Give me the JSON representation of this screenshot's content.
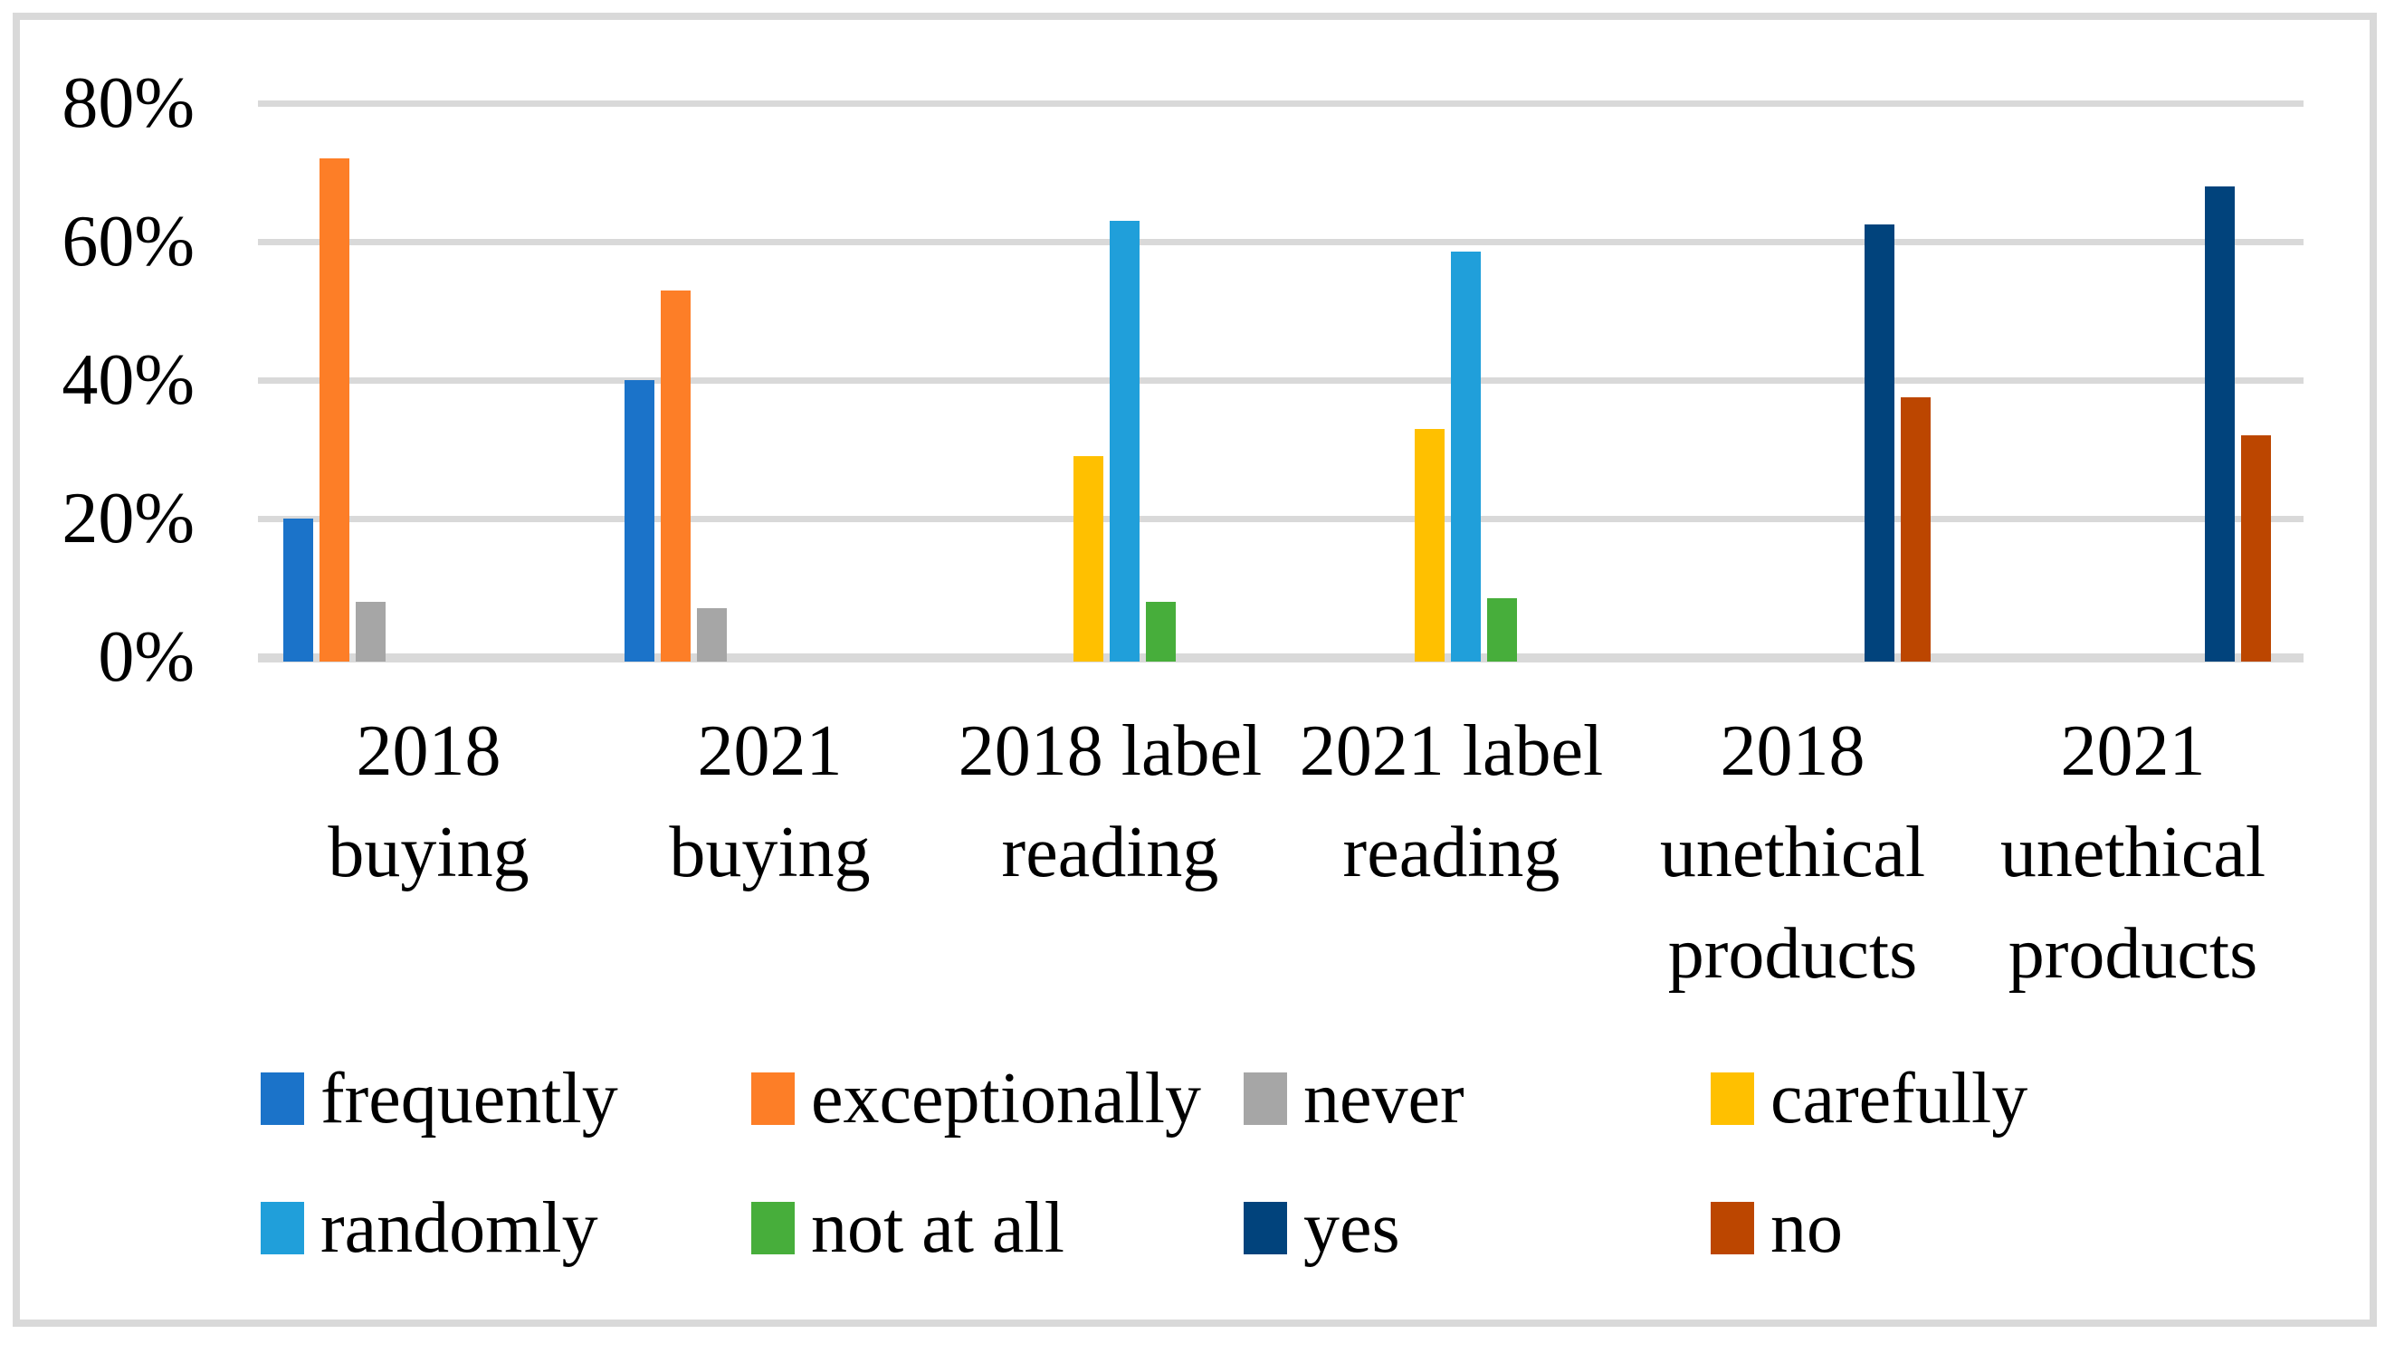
{
  "figure": {
    "background": "#FFFFFF",
    "border_color": "#D9D9D9"
  },
  "chart_data": {
    "type": "bar",
    "title": "",
    "xlabel": "",
    "ylabel": "",
    "ylim": [
      0,
      80
    ],
    "yticks": [
      "80%",
      "60%",
      "40%",
      "20%",
      "0%"
    ],
    "ytick_values": [
      80,
      60,
      40,
      20,
      0
    ],
    "grid": true,
    "gridline_color": "#D9D9D9",
    "axis_line_color": "#D9D9D9",
    "legend_position": "bottom",
    "categories": [
      {
        "label": "2018 buying",
        "lines": [
          "2018",
          "buying"
        ]
      },
      {
        "label": "2021 buying",
        "lines": [
          "2021",
          "buying"
        ]
      },
      {
        "label": "2018 label reading",
        "lines": [
          "2018 label",
          "reading"
        ]
      },
      {
        "label": "2021 label reading",
        "lines": [
          "2021 label",
          "reading"
        ]
      },
      {
        "label": "2018 unethical products",
        "lines": [
          "2018",
          "unethical",
          "products"
        ]
      },
      {
        "label": "2021 unethical products",
        "lines": [
          "2021",
          "unethical",
          "products"
        ]
      }
    ],
    "series": [
      {
        "name": "frequently",
        "color": "#1B73C9",
        "values": [
          20,
          40,
          null,
          null,
          null,
          null
        ]
      },
      {
        "name": "exceptionally",
        "color": "#FD7E27",
        "values": [
          72,
          53,
          null,
          null,
          null,
          null
        ]
      },
      {
        "name": "never",
        "color": "#A6A6A6",
        "values": [
          8,
          7,
          null,
          null,
          null,
          null
        ]
      },
      {
        "name": "carefully",
        "color": "#FFC000",
        "values": [
          null,
          null,
          29,
          33,
          null,
          null
        ]
      },
      {
        "name": "randomly",
        "color": "#209FDA",
        "values": [
          null,
          null,
          63,
          58.5,
          null,
          null
        ]
      },
      {
        "name": "not at all",
        "color": "#47AE3B",
        "values": [
          null,
          null,
          8,
          8.5,
          null,
          null
        ]
      },
      {
        "name": "yes",
        "color": "#01437C",
        "values": [
          null,
          null,
          null,
          null,
          62.5,
          68
        ]
      },
      {
        "name": "no",
        "color": "#BC4600",
        "values": [
          null,
          null,
          null,
          null,
          37.5,
          32
        ]
      }
    ],
    "legend_rows": [
      [
        "frequently",
        "exceptionally",
        "never",
        "carefully"
      ],
      [
        "randomly",
        "not at all",
        "yes",
        "no"
      ]
    ]
  }
}
